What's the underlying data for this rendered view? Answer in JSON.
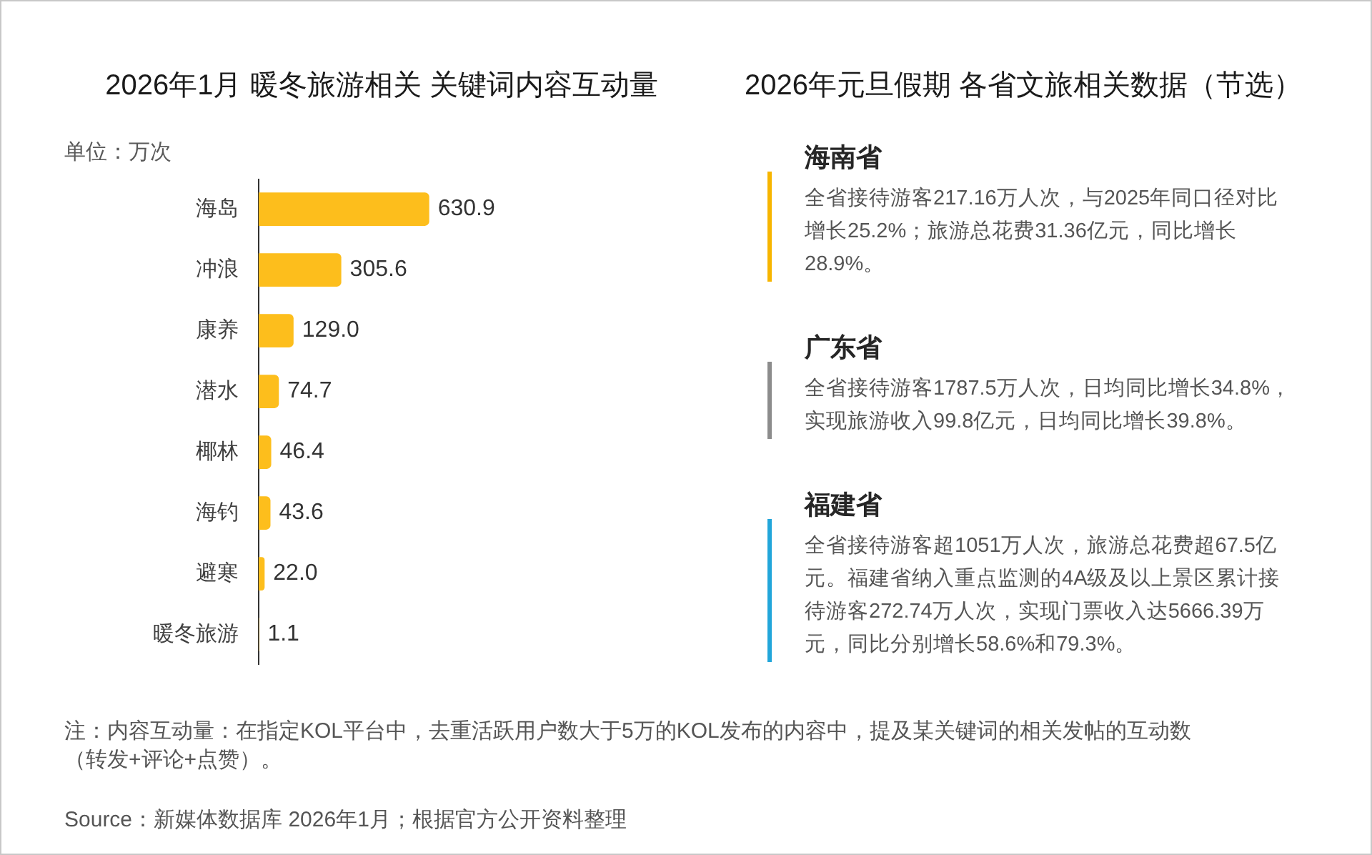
{
  "chart_data": [
    {
      "type": "bar",
      "orientation": "horizontal",
      "title": "2026年1月 暖冬旅游相关 关键词内容互动量",
      "xlabel": "单位：万次",
      "categories": [
        "海岛",
        "冲浪",
        "康养",
        "潜水",
        "椰林",
        "海钓",
        "避寒",
        "暖冬旅游"
      ],
      "values": [
        630.9,
        305.6,
        129.0,
        74.7,
        46.4,
        43.6,
        22.0,
        1.1
      ],
      "value_labels": [
        "630.9",
        "305.6",
        "129.0",
        "74.7",
        "46.4",
        "43.6",
        "22.0",
        "1.1"
      ],
      "color": "#fdbe1c",
      "annotations": [
        "注：内容互动量：在指定KOL平台中，去重活跃用户数大于5万的KOL发布的内容中，提及某关键词的相关发帖的互动数（转发+评论+点赞）。",
        "Source：新媒体数据库 2026年1月；根据官方公开资料整理"
      ]
    },
    {
      "type": "other",
      "title": "2026年元旦假期 各省文旅相关数据（节选）",
      "annotations": [
        "海南省",
        "全省接待游客217.16万人次，与2025年同口径对比增长25.2%；旅游总花费31.36亿元，同比增长28.9%。",
        "广东省",
        "全省接待游客1787.5万人次，日均同比增长34.8%，实现旅游收入99.8亿元，日均同比增长39.8%。",
        "福建省",
        "全省接待游客超1051万人次，旅游总花费超67.5亿元。福建省纳入重点监测的4A级及以上景区累计接待游客272.74万人次，实现门票收入达5666.39万元，同比分别增长58.6%和79.3%。"
      ]
    }
  ]
}
